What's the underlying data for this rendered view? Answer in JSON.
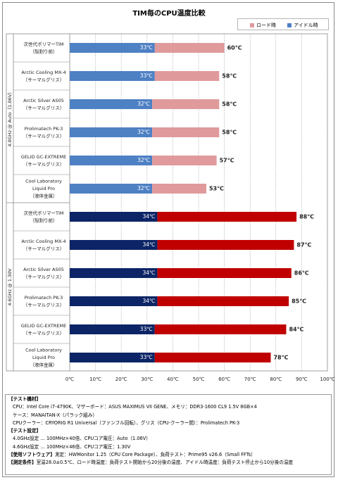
{
  "chart_data": {
    "type": "bar",
    "title": "TIM毎のCPU温度比較",
    "legend_position": "top-right",
    "series": [
      {
        "name": "ロード時",
        "color_group1": "#e09a9c",
        "color_group2": "#c00000"
      },
      {
        "name": "アイドル時",
        "color_group1": "#4e80c4",
        "color_group2": "#0d2566"
      }
    ],
    "x_ticks": [
      "0℃",
      "10℃",
      "20℃",
      "30℃",
      "40℃",
      "50℃",
      "60℃",
      "70℃",
      "80℃",
      "90℃",
      "100℃"
    ],
    "xlim": [
      0,
      100
    ],
    "grid": true,
    "groups": [
      {
        "label": "4.0GHz @ Auto（1.06V）",
        "rows": [
          {
            "name_line1": "次世代ポリマーTIM",
            "name_line2": "（殻割り前）",
            "name_line3": "",
            "idle": 33,
            "load": 60,
            "idle_label": "33℃",
            "load_label": "60℃"
          },
          {
            "name_line1": "Arctic Cooling MX-4",
            "name_line2": "（サーマルグリス）",
            "name_line3": "",
            "idle": 33,
            "load": 58,
            "idle_label": "33℃",
            "load_label": "58℃"
          },
          {
            "name_line1": "Arctic Silver AS05",
            "name_line2": "（サーマルグリス）",
            "name_line3": "",
            "idle": 32,
            "load": 58,
            "idle_label": "32℃",
            "load_label": "58℃"
          },
          {
            "name_line1": "Prolimatech PK-3",
            "name_line2": "（サーマルグリス）",
            "name_line3": "",
            "idle": 32,
            "load": 58,
            "idle_label": "32℃",
            "load_label": "58℃"
          },
          {
            "name_line1": "GELID GC-EXTREME",
            "name_line2": "（サーマルグリス）",
            "name_line3": "",
            "idle": 32,
            "load": 57,
            "idle_label": "32℃",
            "load_label": "57℃"
          },
          {
            "name_line1": "Cool Laboratory",
            "name_line2": "Liquid Pro",
            "name_line3": "（液体金属）",
            "idle": 32,
            "load": 53,
            "idle_label": "32℃",
            "load_label": "53℃"
          }
        ]
      },
      {
        "label": "4.6GHz @ 1.30V",
        "rows": [
          {
            "name_line1": "次世代ポリマーTIM",
            "name_line2": "（殻割り前）",
            "name_line3": "",
            "idle": 34,
            "load": 88,
            "idle_label": "34℃",
            "load_label": "88℃"
          },
          {
            "name_line1": "Arctic Cooling MX-4",
            "name_line2": "（サーマルグリス）",
            "name_line3": "",
            "idle": 34,
            "load": 87,
            "idle_label": "34℃",
            "load_label": "87℃"
          },
          {
            "name_line1": "Arctic Silver AS05",
            "name_line2": "（サーマルグリス）",
            "name_line3": "",
            "idle": 34,
            "load": 86,
            "idle_label": "34℃",
            "load_label": "86℃"
          },
          {
            "name_line1": "Prolimatech PK-3",
            "name_line2": "（サーマルグリス）",
            "name_line3": "",
            "idle": 34,
            "load": 85,
            "idle_label": "34℃",
            "load_label": "85℃"
          },
          {
            "name_line1": "GELID GC-EXTREME",
            "name_line2": "（サーマルグリス）",
            "name_line3": "",
            "idle": 33,
            "load": 84,
            "idle_label": "33℃",
            "load_label": "84℃"
          },
          {
            "name_line1": "Cool Laboratory",
            "name_line2": "Liquid Pro",
            "name_line3": "（液体金属）",
            "idle": 33,
            "load": 78,
            "idle_label": "33℃",
            "load_label": "78℃"
          }
        ]
      }
    ]
  },
  "notes": {
    "test_env_heading": "【テスト機材】",
    "cpu_line": "CPU：Intel Core i7-4790K、マザーボード：ASUS MAXIMUS VII GENE、メモリ：DDR3-1600 CL9 1.5V 8GB×4",
    "case_line": "ケース：MANAITAN-X（パラック組み）",
    "cooler_line": "CPUクーラー：CRYORIG R1 Universal（ファンフル回転）、グリス（CPU-クーラー間）：Prolimatech PK-3",
    "settings_heading": "【テスト設定】",
    "setting1": "4.0GHz設定 … 100MHz×40倍、CPUコア電圧：Auto（1.06V）",
    "setting2": "4.6GHz設定 … 100MHz×46倍、CPUコア電圧：1.30V",
    "software_heading": "【使用ソフトウェア】",
    "software_text": "測定：HWMonitor 1.25（CPU Core Package）、負荷テスト：Prime95 v26.6（Small FFTs）",
    "conditions_heading": "【測定条件】",
    "conditions_text": "室温28.0±0.5℃、ロード時温度：負荷テスト開始から20分後の温度、アイドル時温度：負荷テスト停止から10分後の温度"
  }
}
